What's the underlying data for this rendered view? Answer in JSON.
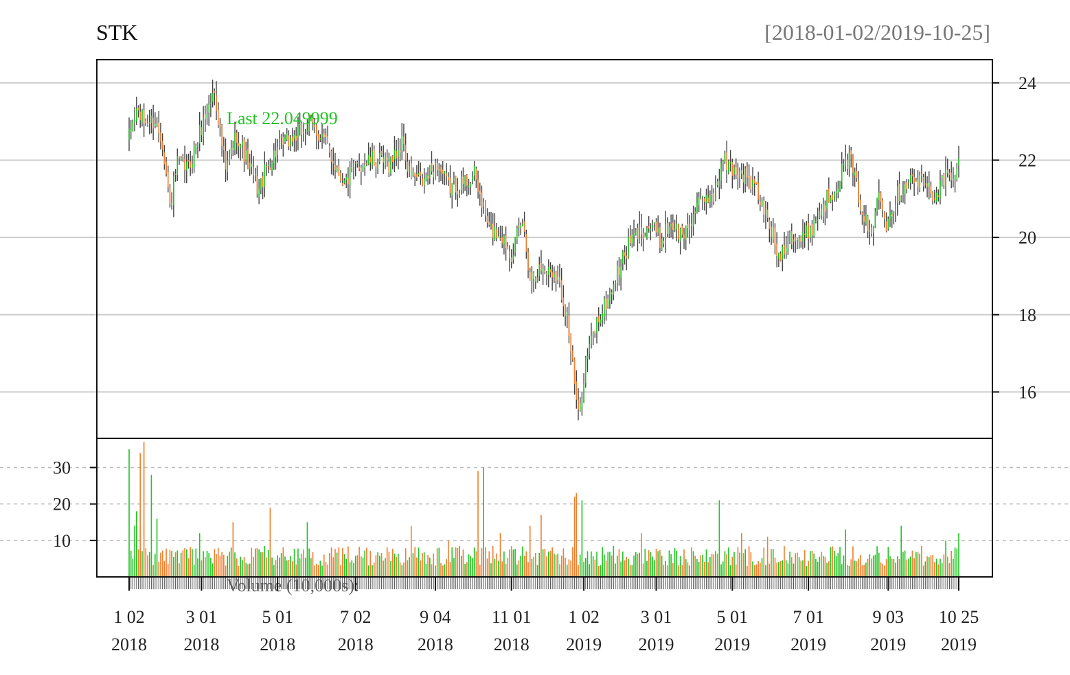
{
  "window": {
    "bg": "#ffffff"
  },
  "chart_data": {
    "type": "candlestick",
    "title": "STK",
    "range_label": "[2018-01-02/2019-10-25]",
    "last_label": "Last 22.049999",
    "volume_label": "Volume (10,000s):",
    "price_ylim": [
      14.8,
      24.6
    ],
    "price_ticks": [
      16,
      18,
      20,
      22,
      24
    ],
    "volume_ylim": [
      0,
      38
    ],
    "volume_ticks": [
      10,
      20,
      30
    ],
    "colors": {
      "up": "#22c422",
      "down": "#f08030",
      "wick": "#444444",
      "grid": "#cccccc"
    },
    "x_ticks": [
      {
        "label1": "1 02",
        "label2": "2018",
        "index": 0
      },
      {
        "label1": "3 01",
        "label2": "2018",
        "index": 39
      },
      {
        "label1": "5 01",
        "label2": "2018",
        "index": 80
      },
      {
        "label1": "7 02",
        "label2": "2018",
        "index": 122
      },
      {
        "label1": "9 04",
        "label2": "2018",
        "index": 165
      },
      {
        "label1": "11 01",
        "label2": "2018",
        "index": 206
      },
      {
        "label1": "1 02",
        "label2": "2019",
        "index": 245
      },
      {
        "label1": "3 01",
        "label2": "2019",
        "index": 284
      },
      {
        "label1": "5 01",
        "label2": "2019",
        "index": 325
      },
      {
        "label1": "7 01",
        "label2": "2019",
        "index": 366
      },
      {
        "label1": "9 03",
        "label2": "2019",
        "index": 409
      },
      {
        "label1": "10 25",
        "label2": "2019",
        "index": 447
      }
    ],
    "anchors": [
      [
        0,
        22.6
      ],
      [
        4,
        23.3
      ],
      [
        8,
        23.0
      ],
      [
        14,
        23.0
      ],
      [
        18,
        22.5
      ],
      [
        22,
        20.8
      ],
      [
        26,
        21.9
      ],
      [
        32,
        21.8
      ],
      [
        40,
        23.0
      ],
      [
        46,
        23.8
      ],
      [
        52,
        21.7
      ],
      [
        58,
        22.7
      ],
      [
        64,
        21.9
      ],
      [
        70,
        21.2
      ],
      [
        74,
        21.8
      ],
      [
        80,
        22.3
      ],
      [
        86,
        22.5
      ],
      [
        92,
        22.7
      ],
      [
        98,
        22.9
      ],
      [
        104,
        22.6
      ],
      [
        110,
        22.0
      ],
      [
        116,
        21.4
      ],
      [
        122,
        21.8
      ],
      [
        130,
        22.0
      ],
      [
        140,
        21.9
      ],
      [
        148,
        22.5
      ],
      [
        150,
        21.7
      ],
      [
        158,
        21.4
      ],
      [
        166,
        21.9
      ],
      [
        172,
        21.3
      ],
      [
        180,
        21.4
      ],
      [
        186,
        21.6
      ],
      [
        194,
        20.2
      ],
      [
        200,
        20.1
      ],
      [
        206,
        19.6
      ],
      [
        212,
        20.4
      ],
      [
        216,
        19.0
      ],
      [
        222,
        19.2
      ],
      [
        230,
        19.1
      ],
      [
        236,
        18.0
      ],
      [
        242,
        15.3
      ],
      [
        246,
        16.8
      ],
      [
        252,
        17.8
      ],
      [
        258,
        18.4
      ],
      [
        264,
        19.2
      ],
      [
        270,
        19.9
      ],
      [
        276,
        20.2
      ],
      [
        282,
        20.3
      ],
      [
        286,
        19.9
      ],
      [
        292,
        20.4
      ],
      [
        298,
        20.0
      ],
      [
        304,
        20.6
      ],
      [
        310,
        21.0
      ],
      [
        316,
        21.2
      ],
      [
        320,
        22.0
      ],
      [
        324,
        21.8
      ],
      [
        332,
        21.6
      ],
      [
        338,
        21.2
      ],
      [
        346,
        20.2
      ],
      [
        350,
        19.5
      ],
      [
        356,
        20.1
      ],
      [
        362,
        19.9
      ],
      [
        368,
        20.3
      ],
      [
        374,
        20.8
      ],
      [
        380,
        21.3
      ],
      [
        384,
        21.7
      ],
      [
        388,
        22.1
      ],
      [
        392,
        21.3
      ],
      [
        396,
        20.5
      ],
      [
        400,
        20.0
      ],
      [
        404,
        21.4
      ],
      [
        408,
        20.4
      ],
      [
        414,
        21.1
      ],
      [
        420,
        21.5
      ],
      [
        428,
        21.4
      ],
      [
        434,
        21.1
      ],
      [
        440,
        21.6
      ],
      [
        444,
        21.4
      ],
      [
        447,
        22.05
      ]
    ],
    "volume_spikes": [
      [
        0,
        35
      ],
      [
        3,
        14
      ],
      [
        4,
        18
      ],
      [
        6,
        34
      ],
      [
        8,
        37
      ],
      [
        12,
        28
      ],
      [
        15,
        16
      ],
      [
        38,
        12
      ],
      [
        56,
        15
      ],
      [
        76,
        19
      ],
      [
        96,
        15
      ],
      [
        128,
        8
      ],
      [
        152,
        14
      ],
      [
        172,
        10
      ],
      [
        188,
        29
      ],
      [
        191,
        30
      ],
      [
        200,
        12
      ],
      [
        216,
        14
      ],
      [
        222,
        17
      ],
      [
        240,
        22
      ],
      [
        241,
        23
      ],
      [
        244,
        21
      ],
      [
        276,
        12
      ],
      [
        318,
        21
      ],
      [
        330,
        12
      ],
      [
        344,
        11
      ],
      [
        386,
        13
      ],
      [
        416,
        14
      ],
      [
        440,
        10
      ],
      [
        447,
        12
      ]
    ],
    "n_bars": 448
  }
}
